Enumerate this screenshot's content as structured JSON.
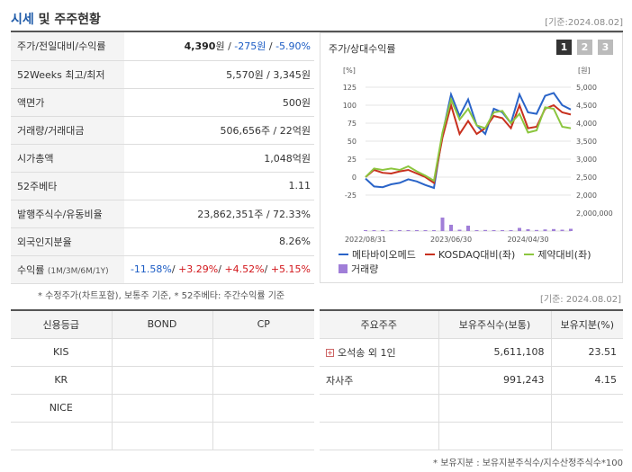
{
  "header": {
    "title_accent": "시세",
    "title_rest": " 및 주주현황",
    "base_date": "[기준:2024.08.02]"
  },
  "stats": [
    {
      "label": "주가/전일대비/수익률",
      "parts": [
        {
          "t": "4,390",
          "c": "b"
        },
        {
          "t": "원 / ",
          "c": ""
        },
        {
          "t": "-275원",
          "c": "down"
        },
        {
          "t": " / ",
          "c": ""
        },
        {
          "t": "-5.90%",
          "c": "down"
        }
      ]
    },
    {
      "label": "52Weeks 최고/최저",
      "parts": [
        {
          "t": "5,570원 / 3,345원",
          "c": ""
        }
      ]
    },
    {
      "label": "액면가",
      "parts": [
        {
          "t": "500원",
          "c": ""
        }
      ]
    },
    {
      "label": "거래량/거래대금",
      "parts": [
        {
          "t": "506,656주 / 22억원",
          "c": ""
        }
      ]
    },
    {
      "label": "시가총액",
      "parts": [
        {
          "t": "1,048억원",
          "c": ""
        }
      ]
    },
    {
      "label": "52주베타",
      "parts": [
        {
          "t": "1.11",
          "c": ""
        }
      ]
    },
    {
      "label": "발행주식수/유동비율",
      "parts": [
        {
          "t": "23,862,351주 / 72.33%",
          "c": ""
        }
      ]
    },
    {
      "label": "외국인지분율",
      "parts": [
        {
          "t": "8.26%",
          "c": ""
        }
      ]
    },
    {
      "label": "수익률",
      "label_small": "(1M/3M/6M/1Y)",
      "parts": [
        {
          "t": "-11.58%",
          "c": "down"
        },
        {
          "t": "/ ",
          "c": ""
        },
        {
          "t": "+3.29%",
          "c": "up"
        },
        {
          "t": "/ ",
          "c": ""
        },
        {
          "t": "+4.52%",
          "c": "up"
        },
        {
          "t": "/ ",
          "c": ""
        },
        {
          "t": "+5.15%",
          "c": "up"
        }
      ]
    }
  ],
  "footnotes": {
    "stats_note": "* 수정주가(차트포함), 보통주 기준, * 52주베타: 주간수익률 기준",
    "chart_date": "[기준: 2024.08.02]",
    "holders_note": "* 보유지분 : 보유지분주식수/지수산정주식수*100"
  },
  "chart": {
    "title": "주가/상대수익률",
    "pages": [
      "1",
      "2",
      "3"
    ],
    "legend": [
      {
        "name": "메타바이오메드",
        "color": "#2a64c8",
        "kind": "line"
      },
      {
        "name": "KOSDAQ대비(좌)",
        "color": "#c8301e",
        "kind": "line"
      },
      {
        "name": "제약대비(좌)",
        "color": "#8cc63f",
        "kind": "line"
      },
      {
        "name": "거래량",
        "color": "#a07ed8",
        "kind": "bar"
      }
    ]
  },
  "chart_data": {
    "type": "line",
    "left_unit": "[%]",
    "right_unit": "[원]",
    "left_ticks": [
      125,
      100,
      75,
      50,
      25,
      0,
      -25
    ],
    "right_ticks": [
      "5,000",
      "4,500",
      "4,000",
      "3,500",
      "3,000",
      "2,500",
      "2,000"
    ],
    "vol_tick": "2,000,000",
    "x_ticks": [
      "2022/08/31",
      "2023/06/30",
      "2024/04/30"
    ],
    "ylim_left": [
      -25,
      125
    ],
    "vol_max": 2000000,
    "series": [
      {
        "name": "메타바이오메드",
        "color": "#2a64c8",
        "values": [
          -2,
          -13,
          -14,
          -10,
          -8,
          -3,
          -6,
          -11,
          -15,
          60,
          115,
          85,
          108,
          72,
          60,
          95,
          90,
          75,
          115,
          90,
          88,
          113,
          117,
          100,
          94
        ]
      },
      {
        "name": "KOSDAQ대비(좌)",
        "color": "#c8301e",
        "values": [
          0,
          10,
          6,
          5,
          8,
          10,
          5,
          0,
          -8,
          55,
          100,
          60,
          78,
          60,
          68,
          85,
          82,
          68,
          100,
          68,
          70,
          95,
          100,
          90,
          87
        ]
      },
      {
        "name": "제약대비(좌)",
        "color": "#8cc63f",
        "values": [
          0,
          12,
          10,
          12,
          10,
          15,
          8,
          2,
          -5,
          62,
          108,
          80,
          95,
          72,
          68,
          90,
          92,
          75,
          88,
          62,
          65,
          97,
          95,
          70,
          68
        ]
      }
    ],
    "volume": [
      30000,
      40000,
      20000,
      30000,
      25000,
      40000,
      30000,
      30000,
      20000,
      1500000,
      700000,
      150000,
      600000,
      100000,
      120000,
      80000,
      100000,
      90000,
      350000,
      200000,
      120000,
      180000,
      220000,
      150000,
      250000
    ]
  },
  "credit": {
    "headers": [
      "신용등급",
      "BOND",
      "CP"
    ],
    "rows": [
      [
        "KIS",
        "",
        ""
      ],
      [
        "KR",
        "",
        ""
      ],
      [
        "NICE",
        "",
        ""
      ],
      [
        "",
        "",
        ""
      ]
    ]
  },
  "holders": {
    "headers": [
      "주요주주",
      "보유주식수(보통)",
      "보유지분(%)"
    ],
    "rows": [
      {
        "name": "오석송 외 1인",
        "plus": true,
        "shares": "5,611,108",
        "pct": "23.51"
      },
      {
        "name": "자사주",
        "plus": false,
        "shares": "991,243",
        "pct": "4.15"
      },
      {
        "name": "",
        "plus": false,
        "shares": "",
        "pct": ""
      },
      {
        "name": "",
        "plus": false,
        "shares": "",
        "pct": ""
      }
    ]
  }
}
